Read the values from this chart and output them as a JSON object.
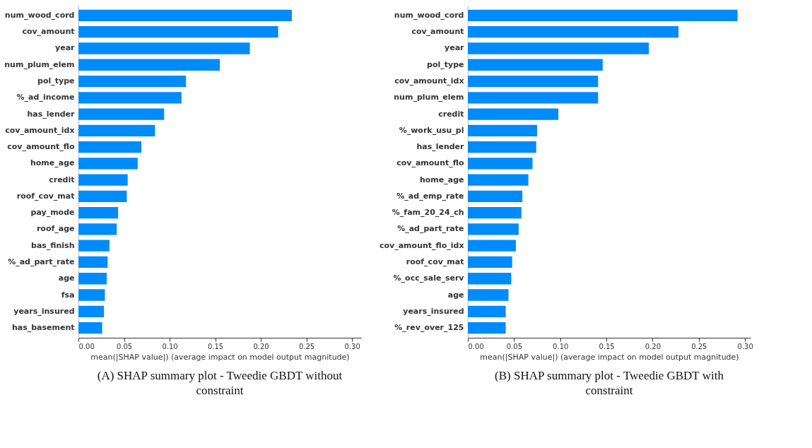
{
  "chart_data": [
    {
      "type": "bar",
      "orientation": "horizontal",
      "title": "(A) SHAP summary plot - Tweedie GBDT without constraint",
      "xlabel": "mean(|SHAP value|) (average impact on model output magnitude)",
      "categories": [
        "num_wood_cord",
        "cov_amount",
        "year",
        "num_plum_elem",
        "pol_type",
        "%_ad_income",
        "has_lender",
        "cov_amount_idx",
        "cov_amount_flo",
        "home_age",
        "credit",
        "roof_cov_mat",
        "pay_mode",
        "roof_age",
        "bas_finish",
        "%_ad_part_rate",
        "age",
        "fsa",
        "years_insured",
        "has_basement"
      ],
      "series": [
        {
          "color": "#008bfb",
          "values": [
            0.234,
            0.219,
            0.188,
            0.155,
            0.118,
            0.113,
            0.094,
            0.084,
            0.069,
            0.065,
            0.054,
            0.053,
            0.0435,
            0.042,
            0.034,
            0.032,
            0.031,
            0.029,
            0.028,
            0.026
          ]
        }
      ],
      "xlim": [
        0,
        0.31
      ],
      "xticks": [
        {
          "value": 0,
          "label": "0.00"
        },
        {
          "value": 0.05,
          "label": "0.05"
        },
        {
          "value": 0.1,
          "label": "0.10"
        },
        {
          "value": 0.15,
          "label": "0.15"
        },
        {
          "value": 0.2,
          "label": "0.20"
        },
        {
          "value": 0.25,
          "label": "0.25"
        },
        {
          "value": 0.3,
          "label": "0.30"
        }
      ],
      "grid": false
    },
    {
      "type": "bar",
      "orientation": "horizontal",
      "title": "(B) SHAP summary plot - Tweedie GBDT with constraint",
      "xlabel": "mean(|SHAP value|) (average impact on model output magnitude)",
      "categories": [
        "num_wood_cord",
        "cov_amount",
        "year",
        "pol_type",
        "cov_amount_idx",
        "num_plum_elem",
        "credit",
        "%_work_usu_pl",
        "has_lender",
        "cov_amount_flo",
        "home_age",
        "%_ad_emp_rate",
        "%_fam_20_24_ch",
        "%_ad_part_rate",
        "cov_amount_flo_idx",
        "roof_cov_mat",
        "%_occ_sale_serv",
        "age",
        "years_insured",
        "%_rev_over_125"
      ],
      "series": [
        {
          "color": "#008bfb",
          "values": [
            0.292,
            0.228,
            0.196,
            0.146,
            0.141,
            0.141,
            0.098,
            0.075,
            0.074,
            0.07,
            0.0655,
            0.059,
            0.058,
            0.055,
            0.052,
            0.048,
            0.047,
            0.044,
            0.041,
            0.041
          ]
        }
      ],
      "xlim": [
        0,
        0.306
      ],
      "xticks": [
        {
          "value": 0,
          "label": "0.00"
        },
        {
          "value": 0.05,
          "label": "0.05"
        },
        {
          "value": 0.1,
          "label": "0.10"
        },
        {
          "value": 0.15,
          "label": "0.15"
        },
        {
          "value": 0.2,
          "label": "0.20"
        },
        {
          "value": 0.25,
          "label": "0.25"
        },
        {
          "value": 0.3,
          "label": "0.30"
        }
      ],
      "grid": false
    }
  ]
}
